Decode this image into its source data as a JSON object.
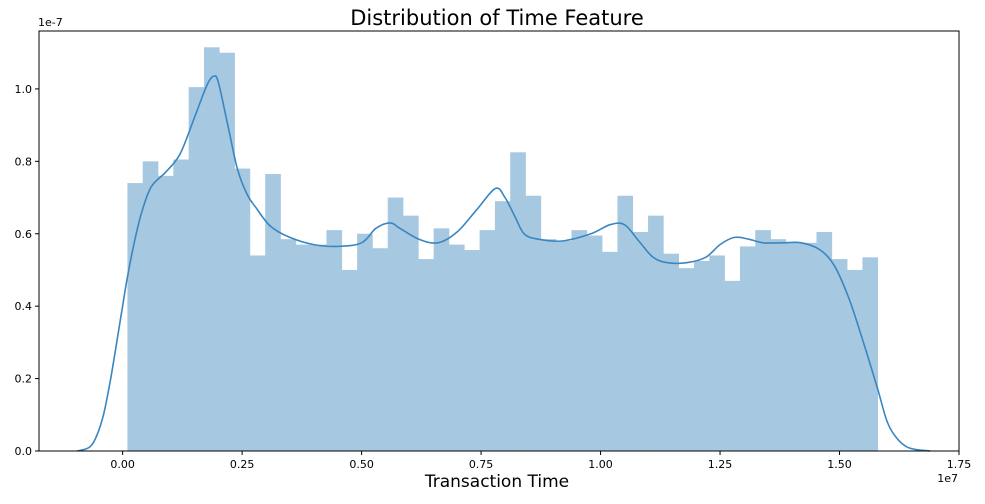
{
  "chart_data": {
    "type": "bar",
    "title": "Distribution of Time Feature",
    "xlabel": "Transaction Time",
    "ylabel": "",
    "x_offset_text": "1e7",
    "y_offset_text": "1e-7",
    "xlim": [
      -0.175,
      1.75
    ],
    "ylim": [
      0,
      1.16
    ],
    "xticks": [
      0.0,
      0.25,
      0.5,
      0.75,
      1.0,
      1.25,
      1.5,
      1.75
    ],
    "xtick_labels": [
      "0.00",
      "0.25",
      "0.50",
      "0.75",
      "1.00",
      "1.25",
      "1.50",
      "1.75"
    ],
    "yticks": [
      0.0,
      0.2,
      0.4,
      0.6,
      0.8,
      1.0
    ],
    "ytick_labels": [
      "0.0",
      "0.2",
      "0.4",
      "0.6",
      "0.8",
      "1.0"
    ],
    "grid": false,
    "bar_color": "#a6c8e0",
    "line_color": "#3a86c0",
    "bin_start": 0.01,
    "bin_end": 1.58,
    "bin_values": [
      0.74,
      0.8,
      0.76,
      0.805,
      1.005,
      1.115,
      1.1,
      0.78,
      0.54,
      0.765,
      0.585,
      0.57,
      0.57,
      0.61,
      0.5,
      0.6,
      0.56,
      0.7,
      0.65,
      0.53,
      0.615,
      0.57,
      0.555,
      0.61,
      0.69,
      0.825,
      0.705,
      0.585,
      0.58,
      0.61,
      0.595,
      0.55,
      0.705,
      0.605,
      0.65,
      0.545,
      0.505,
      0.525,
      0.54,
      0.47,
      0.565,
      0.61,
      0.585,
      0.575,
      0.575,
      0.605,
      0.53,
      0.5,
      0.535
    ],
    "kde": {
      "x": [
        -0.095,
        -0.07,
        -0.055,
        -0.04,
        -0.025,
        -0.01,
        0.0,
        0.01,
        0.025,
        0.04,
        0.06,
        0.09,
        0.12,
        0.15,
        0.17,
        0.18,
        0.19,
        0.2,
        0.22,
        0.24,
        0.26,
        0.28,
        0.31,
        0.35,
        0.4,
        0.45,
        0.5,
        0.53,
        0.56,
        0.58,
        0.62,
        0.66,
        0.7,
        0.74,
        0.78,
        0.8,
        0.82,
        0.84,
        0.87,
        0.92,
        0.98,
        1.02,
        1.05,
        1.08,
        1.11,
        1.14,
        1.18,
        1.22,
        1.25,
        1.28,
        1.31,
        1.34,
        1.38,
        1.42,
        1.46,
        1.49,
        1.52,
        1.55,
        1.58,
        1.6,
        1.62,
        1.64,
        1.66,
        1.69
      ],
      "y": [
        0.0,
        0.01,
        0.04,
        0.1,
        0.2,
        0.32,
        0.4,
        0.48,
        0.58,
        0.66,
        0.73,
        0.77,
        0.82,
        0.92,
        0.99,
        1.02,
        1.035,
        1.02,
        0.9,
        0.78,
        0.71,
        0.67,
        0.62,
        0.59,
        0.57,
        0.565,
        0.575,
        0.615,
        0.63,
        0.615,
        0.585,
        0.575,
        0.605,
        0.665,
        0.725,
        0.7,
        0.65,
        0.6,
        0.585,
        0.58,
        0.6,
        0.625,
        0.625,
        0.58,
        0.535,
        0.52,
        0.52,
        0.535,
        0.57,
        0.59,
        0.585,
        0.575,
        0.575,
        0.575,
        0.555,
        0.51,
        0.42,
        0.3,
        0.17,
        0.08,
        0.035,
        0.012,
        0.004,
        0.0
      ]
    }
  }
}
